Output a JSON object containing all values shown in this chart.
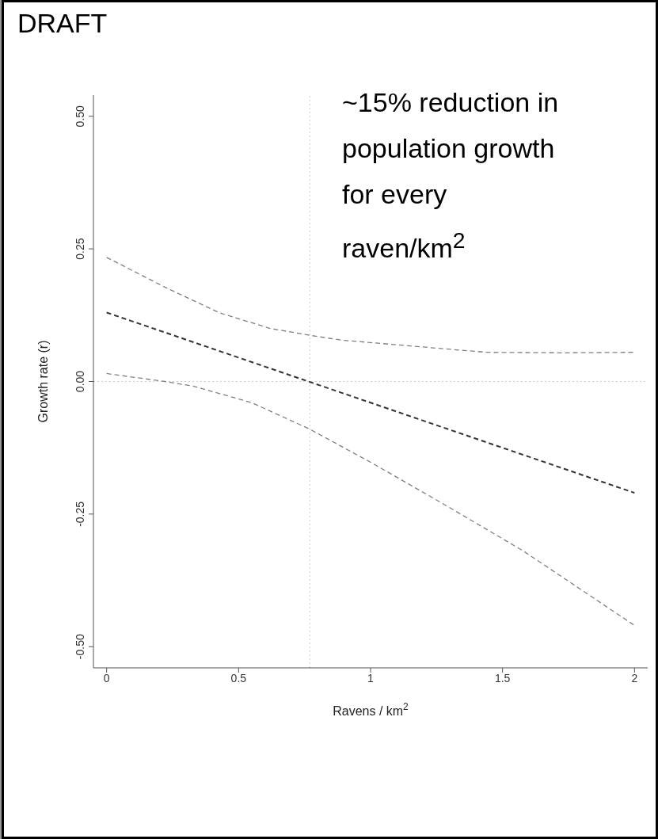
{
  "chart_data": {
    "type": "line",
    "xlabel": "Ravens / km$^{2}$",
    "ylabel": "Growth rate (r)",
    "annotations": [
      "DRAFT",
      "~15% reduction in population growth for every raven/km$^{2}$"
    ],
    "series": [
      {
        "color": "#808080",
        "x": [
          0,
          0.22,
          0.43,
          0.62,
          0.77,
          0.89,
          1.15,
          1.44,
          1.73,
          2
        ],
        "values": [
          0.234,
          0.178,
          0.129,
          0.1,
          0.087,
          0.078,
          0.067,
          0.055,
          0.054,
          0.055
        ]
      },
      {
        "color": "#333333",
        "x": [
          0,
          2
        ],
        "values": [
          0.13,
          -0.21
        ]
      },
      {
        "color": "#808080",
        "x": [
          0,
          0.22,
          0.33,
          0.55,
          0.77,
          1.01,
          1.29,
          1.58,
          2
        ],
        "values": [
          0.015,
          0.0,
          -0.009,
          -0.04,
          -0.09,
          -0.155,
          -0.235,
          -0.32,
          -0.46
        ]
      }
    ],
    "xlim": [
      -0.05,
      2.05
    ],
    "xticks": [
      0,
      0.5,
      1,
      1.5,
      2
    ],
    "ylim": [
      -0.54,
      0.54
    ],
    "yticks": [
      {
        "value": -0.5,
        "label": "-0.50"
      },
      {
        "value": -0.25,
        "label": "-0.25"
      },
      {
        "value": 0,
        "label": "0.00"
      },
      {
        "value": 0.25,
        "label": "0.25"
      },
      {
        "value": 0.5,
        "label": "0.50"
      }
    ],
    "ref_lines": [
      {
        "axis": "x",
        "value": 0.77,
        "color": "#cccccc",
        "line_style": "dotted"
      },
      {
        "axis": "y",
        "value": 0,
        "color": "#cccccc",
        "line_style": "dotted"
      }
    ],
    "grid": false,
    "legend": false,
    "line_style": "dashed",
    "marker": "none"
  }
}
